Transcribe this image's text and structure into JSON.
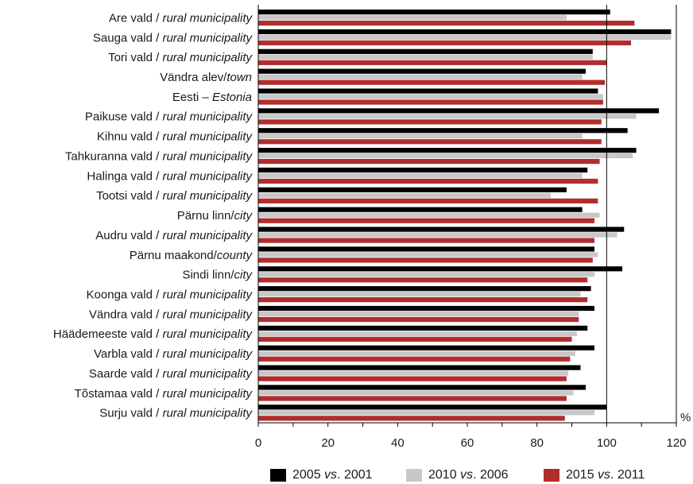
{
  "chart_data": {
    "type": "bar",
    "orientation": "horizontal",
    "categories": [
      {
        "main": "Are vald",
        "sep": " / ",
        "italic": "rural municipality"
      },
      {
        "main": "Sauga vald",
        "sep": " / ",
        "italic": "rural municipality"
      },
      {
        "main": "Tori vald",
        "sep": " / ",
        "italic": "rural municipality"
      },
      {
        "main": "Vändra alev",
        "sep": "/",
        "italic": "town"
      },
      {
        "main": "Eesti – ",
        "sep": "",
        "italic": "Estonia"
      },
      {
        "main": "Paikuse vald",
        "sep": " / ",
        "italic": "rural municipality"
      },
      {
        "main": "Kihnu vald",
        "sep": " / ",
        "italic": "rural municipality"
      },
      {
        "main": "Tahkuranna vald",
        "sep": " / ",
        "italic": "rural municipality"
      },
      {
        "main": "Halinga vald",
        "sep": " / ",
        "italic": "rural municipality"
      },
      {
        "main": "Tootsi vald",
        "sep": " / ",
        "italic": "rural municipality"
      },
      {
        "main": "Pärnu linn",
        "sep": "/",
        "italic": "city"
      },
      {
        "main": "Audru vald",
        "sep": " / ",
        "italic": "rural municipality"
      },
      {
        "main": "Pärnu maakond",
        "sep": "/",
        "italic": "county"
      },
      {
        "main": "Sindi linn",
        "sep": "/",
        "italic": "city"
      },
      {
        "main": "Koonga vald",
        "sep": " / ",
        "italic": "rural municipality"
      },
      {
        "main": "Vändra vald",
        "sep": " / ",
        "italic": "rural municipality"
      },
      {
        "main": "Häädemeeste vald",
        "sep": " / ",
        "italic": "rural municipality"
      },
      {
        "main": "Varbla vald",
        "sep": " / ",
        "italic": "rural municipality"
      },
      {
        "main": "Saarde vald",
        "sep": " / ",
        "italic": "rural municipality"
      },
      {
        "main": "Tõstamaa vald",
        "sep": " / ",
        "italic": "rural municipality"
      },
      {
        "main": "Surju vald",
        "sep": " / ",
        "italic": "rural municipality"
      }
    ],
    "series": [
      {
        "name": {
          "a": "2005 ",
          "vs": "vs",
          "b": ". 2001"
        },
        "color": "#000000",
        "values": [
          101,
          118.5,
          96,
          94,
          97.5,
          115,
          106,
          108.5,
          94.5,
          88.5,
          93,
          105,
          96.5,
          104.5,
          95.5,
          96.5,
          94.5,
          96.5,
          92.5,
          94,
          100
        ]
      },
      {
        "name": {
          "a": "2010 ",
          "vs": "vs",
          "b": ". 2006"
        },
        "color": "#c8c8c8",
        "values": [
          88.5,
          118.5,
          96,
          93,
          99,
          108.5,
          93,
          107.5,
          93,
          84,
          98,
          103,
          97.5,
          96.5,
          92.5,
          92,
          91.5,
          91,
          89,
          90.5,
          96.5
        ]
      },
      {
        "name": {
          "a": "2015 ",
          "vs": "vs",
          "b": ". 2011"
        },
        "color": "#b22d2d",
        "values": [
          108,
          107,
          100,
          99.5,
          99,
          98.5,
          98.5,
          98,
          97.5,
          97.5,
          96.5,
          96.5,
          96,
          94.5,
          94.5,
          92,
          90,
          89.5,
          88.5,
          88.5,
          88
        ]
      }
    ],
    "xlim": [
      0,
      120
    ],
    "xticks": [
      "0",
      "20",
      "40",
      "60",
      "80",
      "100",
      "120"
    ],
    "unit": "%",
    "reference_line": 100,
    "grid": false,
    "legend_position": "bottom"
  }
}
